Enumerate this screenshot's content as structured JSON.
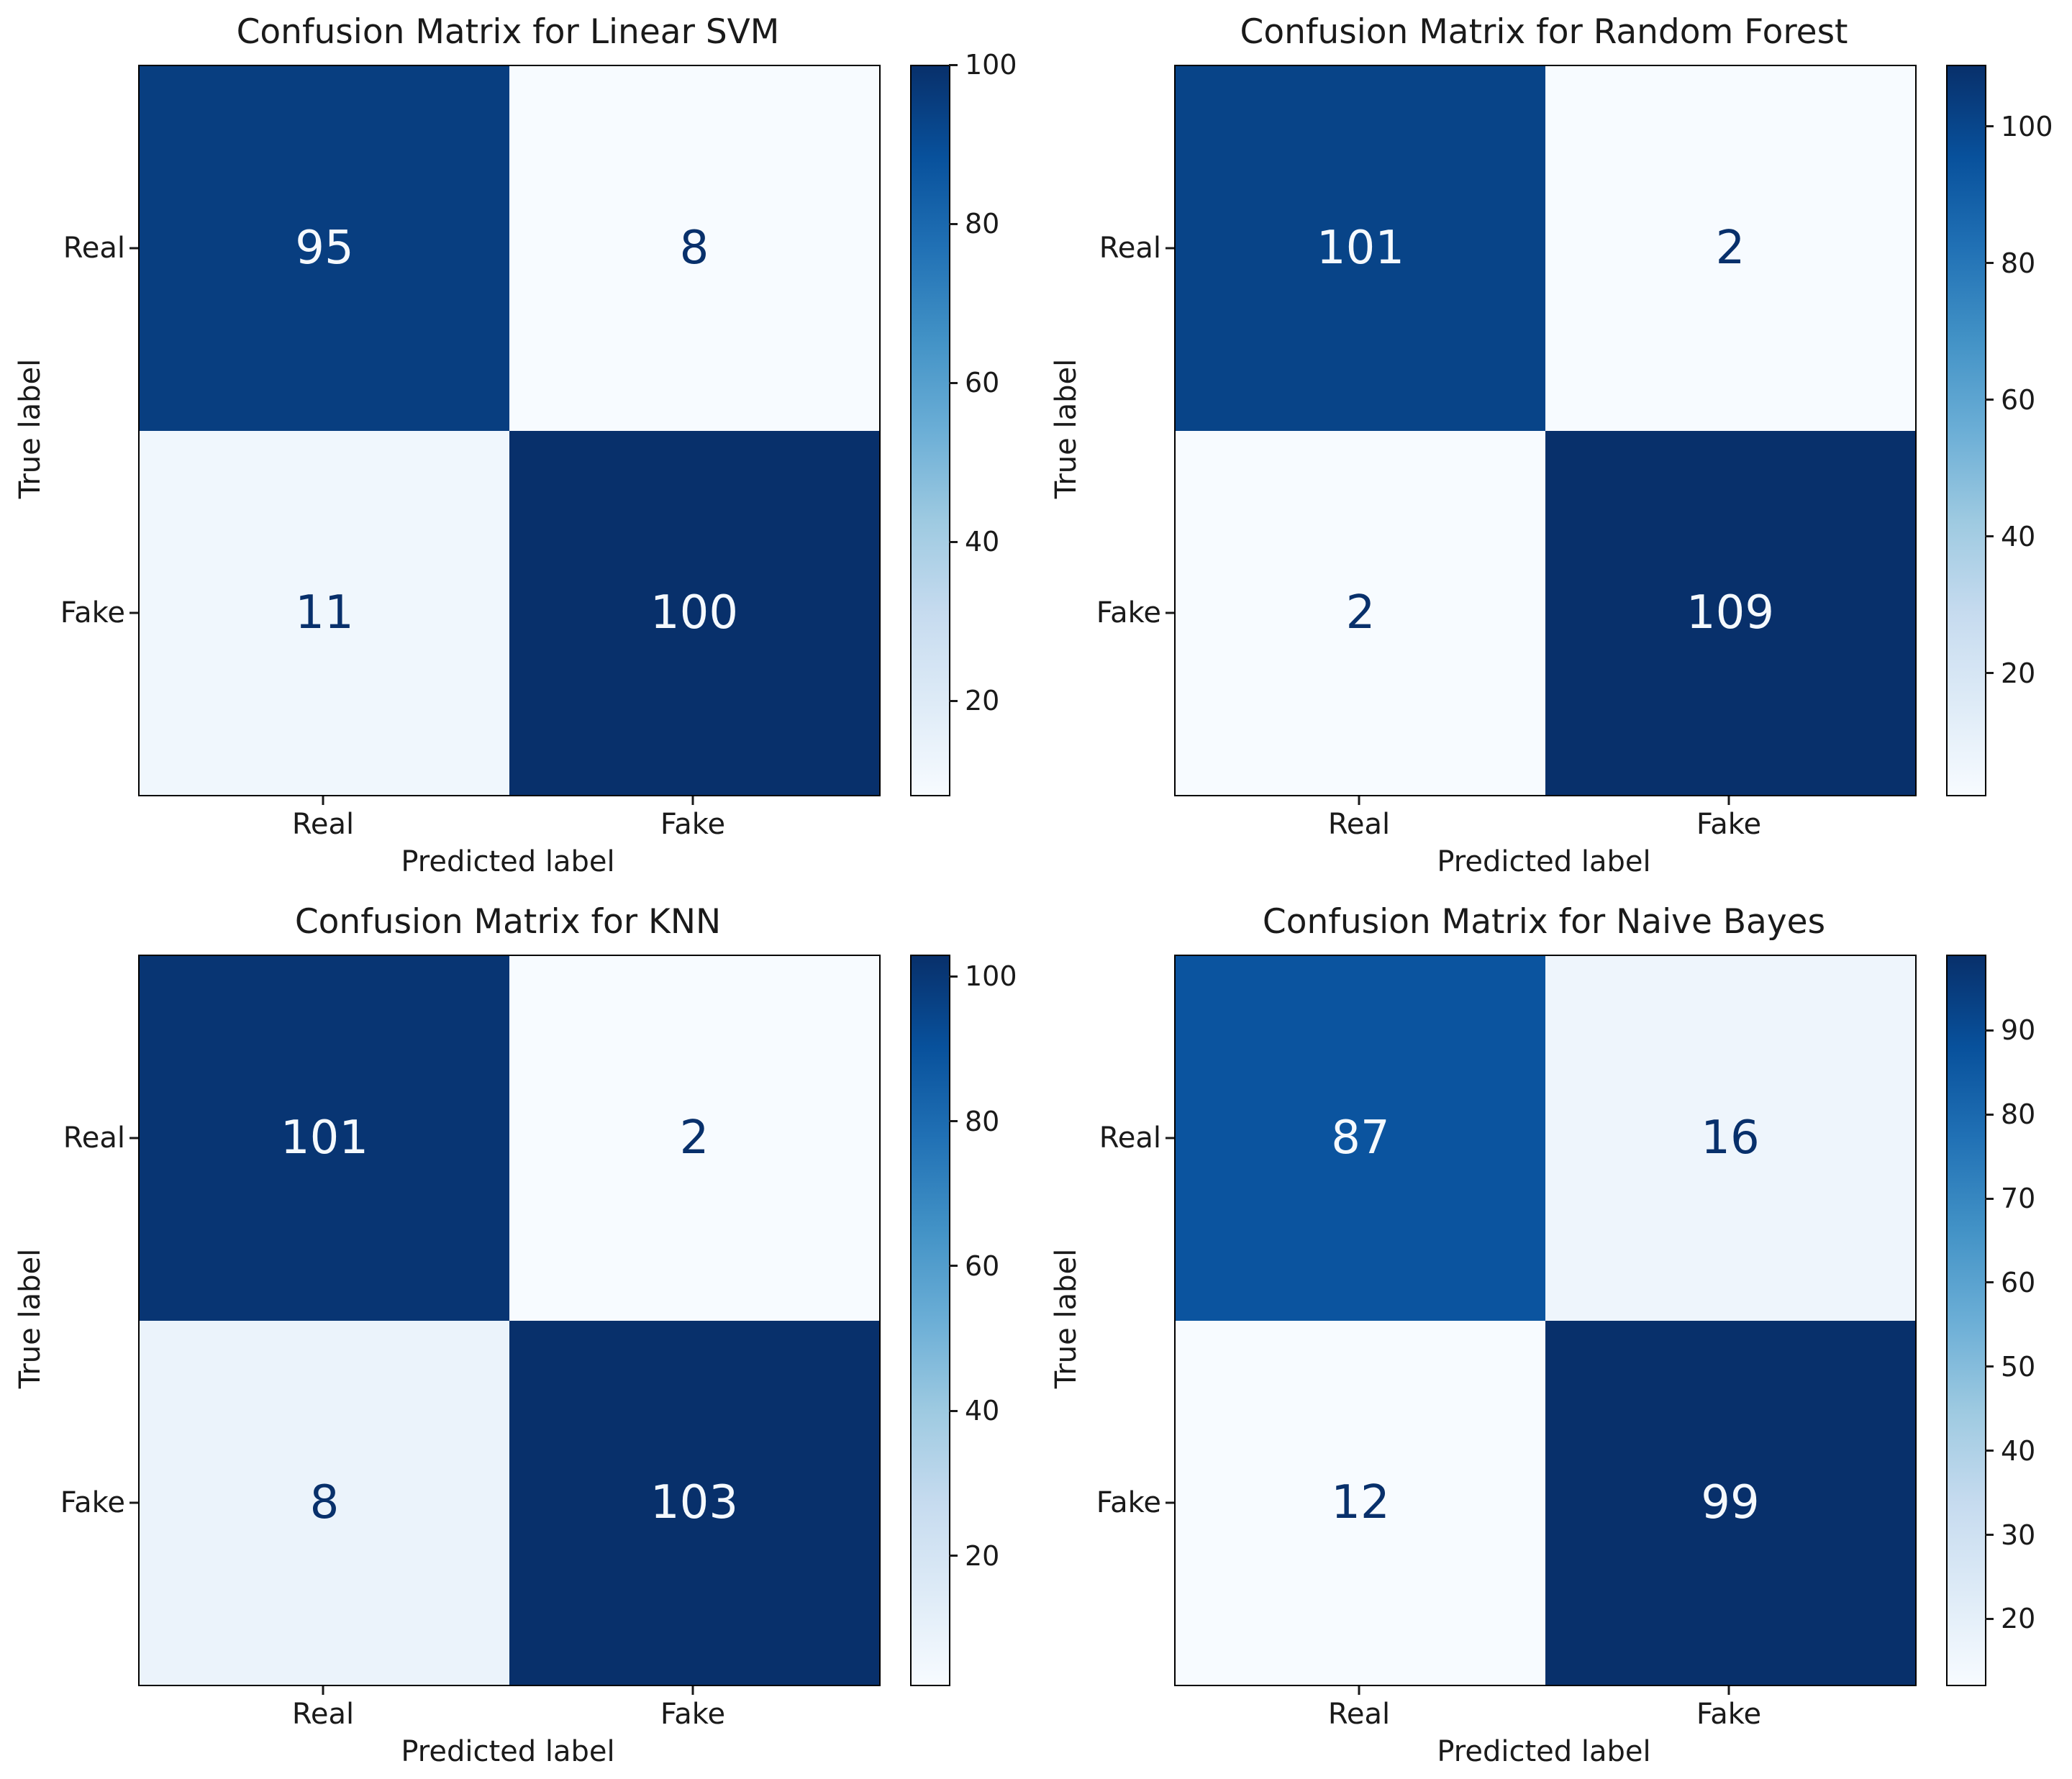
{
  "page": {
    "background": "#ffffff"
  },
  "colors": {
    "text": "#1a1a1a",
    "spine": "#000000",
    "value_text_light": "#f5f9fd",
    "value_text_dark": "#08306b",
    "colormap_name": "Blues",
    "blues_stops": [
      [
        0,
        "#f7fbff"
      ],
      [
        0.125,
        "#deebf7"
      ],
      [
        0.25,
        "#c6dbef"
      ],
      [
        0.375,
        "#9ecae1"
      ],
      [
        0.5,
        "#6baed6"
      ],
      [
        0.625,
        "#4292c6"
      ],
      [
        0.75,
        "#2171b5"
      ],
      [
        0.875,
        "#08519c"
      ],
      [
        1,
        "#08306b"
      ]
    ]
  },
  "chart_data": [
    {
      "type": "heatmap",
      "title": "Confusion Matrix for Linear SVM",
      "xlabel": "Predicted label",
      "ylabel": "True label",
      "x_ticklabels": [
        "Real",
        "Fake"
      ],
      "y_ticklabels": [
        "Real",
        "Fake"
      ],
      "matrix": [
        [
          95,
          8
        ],
        [
          11,
          100
        ]
      ],
      "vmin": 8,
      "vmax": 100,
      "colorbar_ticks": [
        20,
        40,
        60,
        80,
        100
      ],
      "cell_colors": [
        [
          "#083e80",
          "#f7fbff"
        ],
        [
          "#f0f7fd",
          "#08306b"
        ]
      ]
    },
    {
      "type": "heatmap",
      "title": "Confusion Matrix for Random Forest",
      "xlabel": "Predicted label",
      "ylabel": "True label",
      "x_ticklabels": [
        "Real",
        "Fake"
      ],
      "y_ticklabels": [
        "Real",
        "Fake"
      ],
      "matrix": [
        [
          101,
          2
        ],
        [
          2,
          109
        ]
      ],
      "vmin": 2,
      "vmax": 109,
      "colorbar_ticks": [
        20,
        40,
        60,
        80,
        100
      ],
      "cell_colors": [
        [
          "#084488",
          "#f7fbff"
        ],
        [
          "#f7fbff",
          "#08306b"
        ]
      ]
    },
    {
      "type": "heatmap",
      "title": "Confusion Matrix for KNN",
      "xlabel": "Predicted label",
      "ylabel": "True label",
      "x_ticklabels": [
        "Real",
        "Fake"
      ],
      "y_ticklabels": [
        "Real",
        "Fake"
      ],
      "matrix": [
        [
          101,
          2
        ],
        [
          8,
          103
        ]
      ],
      "vmin": 2,
      "vmax": 103,
      "colorbar_ticks": [
        20,
        40,
        60,
        80,
        100
      ],
      "cell_colors": [
        [
          "#083573",
          "#f7fbff"
        ],
        [
          "#ebf3fb",
          "#08306b"
        ]
      ]
    },
    {
      "type": "heatmap",
      "title": "Confusion Matrix for Naive Bayes",
      "xlabel": "Predicted label",
      "ylabel": "True label",
      "x_ticklabels": [
        "Real",
        "Fake"
      ],
      "y_ticklabels": [
        "Real",
        "Fake"
      ],
      "matrix": [
        [
          87,
          16
        ],
        [
          12,
          99
        ]
      ],
      "vmin": 12,
      "vmax": 99,
      "colorbar_ticks": [
        20,
        30,
        40,
        50,
        60,
        70,
        80,
        90
      ],
      "cell_colors": [
        [
          "#0b549f",
          "#eef5fc"
        ],
        [
          "#f7fbff",
          "#08306b"
        ]
      ]
    }
  ]
}
